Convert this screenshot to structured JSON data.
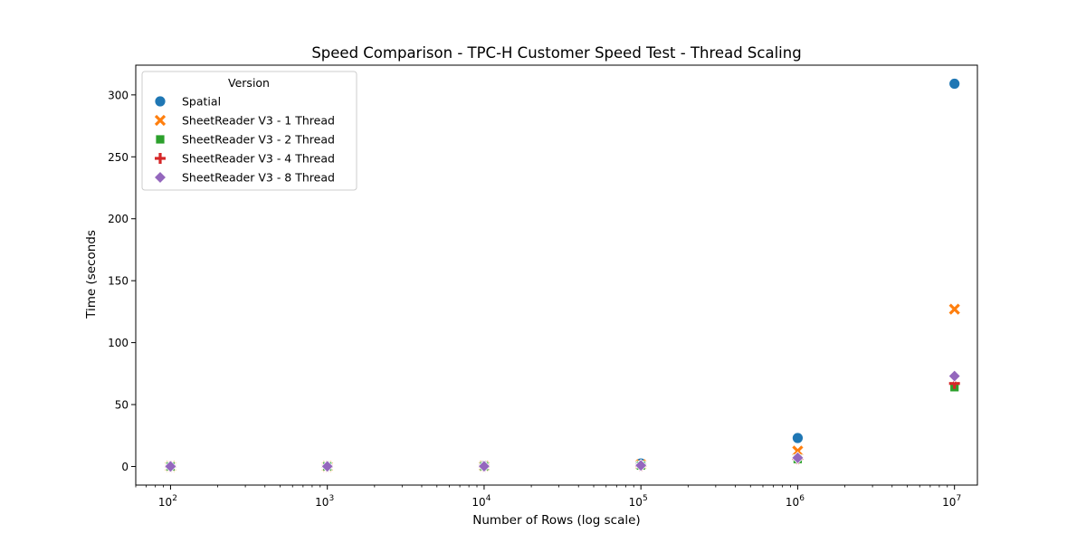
{
  "chart_data": {
    "type": "scatter",
    "title": "Speed Comparison - TPC-H Customer Speed Test - Thread Scaling",
    "xlabel": "Number of Rows (log scale)",
    "ylabel": "Time (seconds",
    "xscale": "log",
    "xlim": [
      60,
      14000000
    ],
    "ylim": [
      -15,
      324
    ],
    "xticks": [
      100,
      1000,
      10000,
      100000,
      1000000,
      10000000
    ],
    "xtick_labels": [
      {
        "base": "10",
        "exp": "2"
      },
      {
        "base": "10",
        "exp": "3"
      },
      {
        "base": "10",
        "exp": "4"
      },
      {
        "base": "10",
        "exp": "5"
      },
      {
        "base": "10",
        "exp": "6"
      },
      {
        "base": "10",
        "exp": "7"
      }
    ],
    "yticks": [
      0,
      50,
      100,
      150,
      200,
      250,
      300
    ],
    "ytick_labels": [
      "0",
      "50",
      "100",
      "150",
      "200",
      "250",
      "300"
    ],
    "grid": false,
    "legend": {
      "title": "Version",
      "position": "top-left"
    },
    "series": [
      {
        "name": "Spatial",
        "marker": "circle",
        "color": "#1f77b4",
        "x": [
          100,
          1000,
          10000,
          100000,
          1000000,
          10000000
        ],
        "y": [
          0.1,
          0.2,
          0.5,
          2.5,
          23,
          309
        ]
      },
      {
        "name": "SheetReader V3 - 1 Thread",
        "marker": "x",
        "color": "#ff7f0e",
        "x": [
          100,
          1000,
          10000,
          100000,
          1000000,
          10000000
        ],
        "y": [
          0.05,
          0.1,
          0.3,
          1.5,
          12.5,
          127
        ]
      },
      {
        "name": "SheetReader V3 - 2 Thread",
        "marker": "square",
        "color": "#2ca02c",
        "x": [
          100,
          1000,
          10000,
          100000,
          1000000,
          10000000
        ],
        "y": [
          0.05,
          0.1,
          0.2,
          0.8,
          6,
          64
        ]
      },
      {
        "name": "SheetReader V3 - 4 Thread",
        "marker": "plus",
        "color": "#d62728",
        "x": [
          100,
          1000,
          10000,
          100000,
          1000000,
          10000000
        ],
        "y": [
          0.05,
          0.1,
          0.2,
          0.8,
          6.5,
          67
        ]
      },
      {
        "name": "SheetReader V3 - 8 Thread",
        "marker": "diamond",
        "color": "#9467bd",
        "x": [
          100,
          1000,
          10000,
          100000,
          1000000,
          10000000
        ],
        "y": [
          0.05,
          0.1,
          0.2,
          0.9,
          7,
          73
        ]
      }
    ]
  }
}
